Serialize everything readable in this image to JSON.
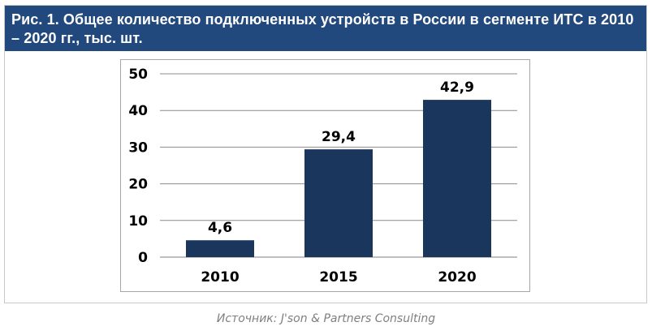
{
  "header": {
    "title": "Рис. 1. Общее количество подключенных устройств в России в сегменте ИТС в 2010 – 2020 гг., тыс. шт."
  },
  "source": "Источник: J'son & Partners Consulting",
  "colors": {
    "header_bg": "#22497d",
    "bar": "#1b365d"
  },
  "chart_data": {
    "type": "bar",
    "categories": [
      "2010",
      "2015",
      "2020"
    ],
    "values": [
      4.6,
      29.4,
      42.9
    ],
    "data_labels": [
      "4,6",
      "29,4",
      "42,9"
    ],
    "yticks": [
      "0",
      "10",
      "20",
      "30",
      "40",
      "50"
    ],
    "ylim": [
      0,
      50
    ],
    "grid": true,
    "xlabel": "",
    "ylabel": ""
  }
}
